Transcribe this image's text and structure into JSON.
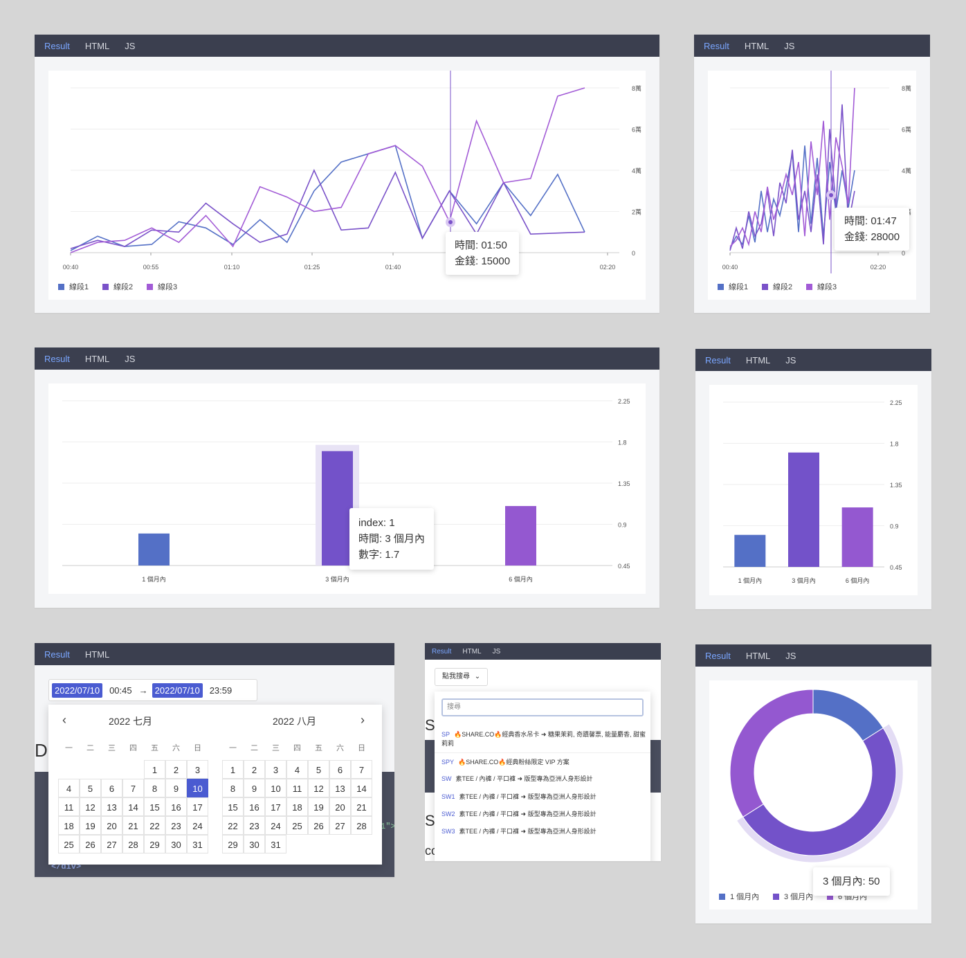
{
  "tabs": {
    "result": "Result",
    "html": "HTML",
    "js": "JS"
  },
  "line_chart_1": {
    "tooltip_time": "時間: 01:50",
    "tooltip_money": "金錢: 15000"
  },
  "line_chart_2": {
    "tooltip_time": "時間: 01:47",
    "tooltip_money": "金錢: 28000"
  },
  "bar_chart_1": {
    "tooltip_index": "index: 1",
    "tooltip_time": "時間: 3 個月內",
    "tooltip_num": "數字: 1.7"
  },
  "date_picker": {
    "start_date": "2022/07/10",
    "start_time": "00:45",
    "end_date": "2022/07/10",
    "end_time": "23:59",
    "arrow": "→",
    "left_title": "2022 七月",
    "right_title": "2022 八月",
    "prev": "‹",
    "next": "›",
    "weekdays": [
      "一",
      "二",
      "三",
      "四",
      "五",
      "六",
      "日"
    ],
    "selected_day": "10",
    "behind_text": "D",
    "behind_code": "</div>",
    "behind_quote": "1\">"
  },
  "search_dropdown": {
    "button_label": "點我搜尋",
    "placeholder": "搜尋",
    "behind_letter_1": "S",
    "behind_letter_2": "S",
    "behind_word": "constructor",
    "items": [
      {
        "code": "SP",
        "text": "🔥SHARE.CO🔥經典香水吊卡 ➜ 糖果茉莉, 奇蹟馨票, 能量麝香, 甜蜜莉莉"
      },
      {
        "code": "SPY",
        "text": "🔥SHARE.CO🔥經典粉絲限定 VIP 方案"
      },
      {
        "code": "SW",
        "text": "素TEE / 內褲 / 平口褲 ➜ 版型專為亞洲人身形設計"
      },
      {
        "code": "SW1",
        "text": "素TEE / 內褲 / 平口褲 ➜ 版型專為亞洲人身形設計"
      },
      {
        "code": "SW2",
        "text": "素TEE / 內褲 / 平口褲 ➜ 版型專為亞洲人身形設計"
      },
      {
        "code": "SW3",
        "text": "素TEE / 內褲 / 平口褲 ➜ 版型專為亞洲人身形設計"
      }
    ]
  },
  "donut": {
    "tooltip": "3 個月內: 50"
  },
  "chart_data": [
    {
      "type": "line",
      "title": "",
      "x": [
        "00:40",
        "00:45",
        "00:50",
        "00:55",
        "01:00",
        "01:05",
        "01:10",
        "01:15",
        "01:20",
        "01:25",
        "01:30",
        "01:35",
        "01:40",
        "01:45",
        "01:50",
        "01:55",
        "02:00",
        "02:05",
        "02:10",
        "02:15"
      ],
      "x_ticks": [
        "00:40",
        "00:55",
        "01:10",
        "01:25",
        "01:40",
        "01:55",
        "02:20"
      ],
      "y_ticks": [
        "0",
        "2萬",
        "4萬",
        "6萬",
        "8萬"
      ],
      "ylim": [
        0,
        80000
      ],
      "series": [
        {
          "name": "線段1",
          "color": "#5470c6",
          "values": [
            1000,
            8000,
            3000,
            4000,
            15000,
            12000,
            4000,
            16000,
            5000,
            30000,
            44000,
            48000,
            52000,
            7000,
            30000,
            14000,
            34000,
            18000,
            38000,
            10000
          ]
        },
        {
          "name": "線段2",
          "color": "#7a52c9",
          "values": [
            2000,
            6000,
            3000,
            11000,
            10000,
            24000,
            14000,
            5000,
            9000,
            40000,
            11000,
            12000,
            39000,
            7000,
            30000,
            9000,
            34000,
            9000,
            9500,
            10000
          ]
        },
        {
          "name": "線段3",
          "color": "#a25bd6",
          "values": [
            0,
            5000,
            6000,
            12000,
            5000,
            18000,
            3000,
            32000,
            27000,
            20000,
            22000,
            48000,
            52000,
            42000,
            15000,
            64000,
            34000,
            36000,
            76000,
            80000
          ]
        }
      ],
      "legend": "bottom-left",
      "grid": true
    },
    {
      "type": "line",
      "title": "",
      "x_ticks": [
        "00:40",
        "02:20"
      ],
      "y_ticks": [
        "0",
        "2萬",
        "4萬",
        "6萬",
        "8萬"
      ],
      "ylim": [
        0,
        80000
      ],
      "series": [
        {
          "name": "線段1",
          "color": "#5470c6",
          "values": [
            2000,
            8000,
            4000,
            18000,
            5000,
            30000,
            10000,
            26000,
            18000,
            32000,
            48000,
            10000,
            52000,
            14000,
            46000,
            8000,
            44000,
            20000,
            40000,
            22000,
            40000
          ]
        },
        {
          "name": "線段2",
          "color": "#7a52c9",
          "values": [
            1000,
            12000,
            2000,
            20000,
            8000,
            14000,
            30000,
            8000,
            34000,
            24000,
            50000,
            16000,
            30000,
            10000,
            38000,
            4000,
            60000,
            22000,
            72000,
            14000,
            30000
          ]
        },
        {
          "name": "線段3",
          "color": "#a25bd6",
          "values": [
            3000,
            6000,
            12000,
            4000,
            20000,
            10000,
            32000,
            16000,
            26000,
            38000,
            28000,
            44000,
            8000,
            54000,
            28000,
            64000,
            16000,
            56000,
            42000,
            24000,
            80000
          ]
        }
      ],
      "legend": "bottom-left",
      "grid": true
    },
    {
      "type": "bar",
      "categories": [
        "1 個月內",
        "3 個月內",
        "6 個月內"
      ],
      "values": [
        0.8,
        1.7,
        1.1
      ],
      "colors": [
        "#5470c6",
        "#7352c9",
        "#9458d0"
      ],
      "y_ticks": [
        "0.45",
        "0.9",
        "1.35",
        "1.8",
        "2.25"
      ],
      "ylim": [
        0.45,
        2.25
      ],
      "grid": true
    },
    {
      "type": "bar",
      "categories": [
        "1 個月內",
        "3 個月內",
        "6 個月內"
      ],
      "values": [
        0.8,
        1.7,
        1.1
      ],
      "colors": [
        "#5470c6",
        "#7352c9",
        "#9458d0"
      ],
      "y_ticks": [
        "0.45",
        "0.9",
        "1.35",
        "1.8",
        "2.25"
      ],
      "ylim": [
        0.45,
        2.25
      ],
      "grid": true
    },
    {
      "type": "pie",
      "categories": [
        "1 個月內",
        "3 個月內",
        "6 個月內"
      ],
      "values": [
        16,
        50,
        34
      ],
      "colors": [
        "#5470c6",
        "#7352c9",
        "#9458d0"
      ],
      "legend_labels": [
        "1 個月內",
        "3 個月內",
        "6 個月內"
      ],
      "legend": "bottom-left"
    }
  ]
}
